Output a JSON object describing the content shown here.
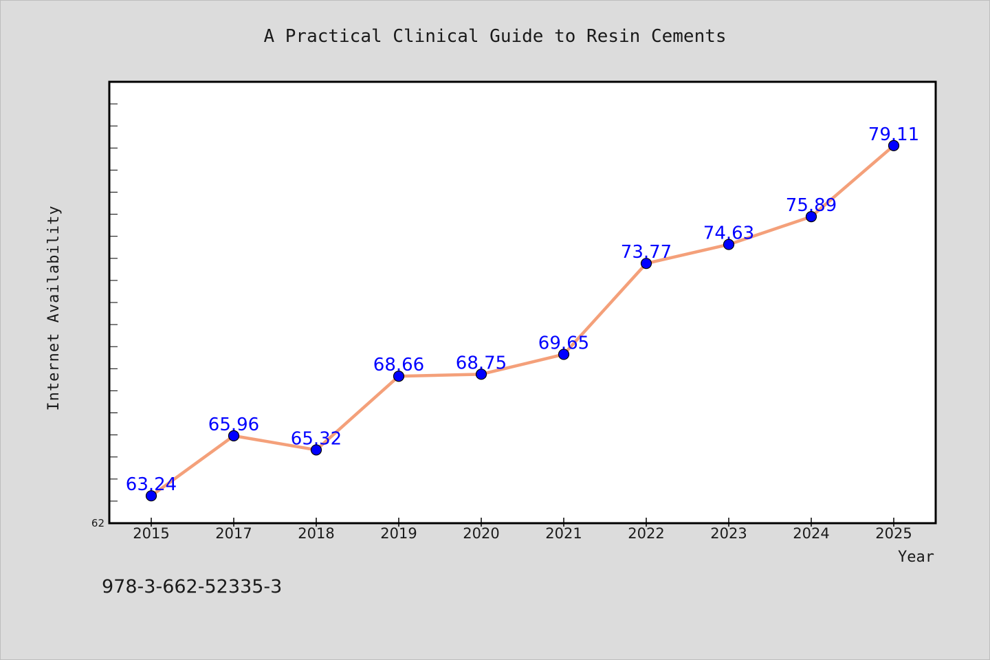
{
  "chart_data": {
    "type": "line",
    "title": "A Practical Clinical Guide to Resin Cements",
    "xlabel": "Year",
    "ylabel": "Internet Availability",
    "categories": [
      "2015",
      "2017",
      "2018",
      "2019",
      "2020",
      "2021",
      "2022",
      "2023",
      "2024",
      "2025"
    ],
    "series": [
      {
        "values": [
          63.24,
          65.96,
          65.32,
          68.66,
          68.75,
          69.65,
          73.77,
          74.63,
          75.89,
          79.11
        ],
        "labels": [
          "63.24",
          "65.96",
          "65.32",
          "68.66",
          "68.75",
          "69.65",
          "73.77",
          "74.63",
          "75.89",
          "79.11"
        ]
      }
    ],
    "ylim": [
      62,
      82
    ],
    "y_tick_labels": [
      "62"
    ],
    "grid": false,
    "legend": "none"
  },
  "footer": {
    "isbn": "978-3-662-52335-3"
  },
  "colors": {
    "background": "#dcdcdc",
    "plot_bg": "#ffffff",
    "line": "#f4a07a",
    "marker": "#0000ff",
    "data_label": "#0000ff",
    "text": "#1a1a1a"
  }
}
